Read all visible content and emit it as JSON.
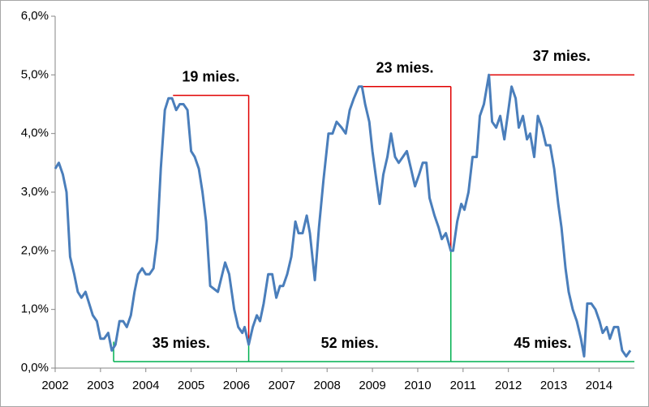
{
  "chart_data": {
    "type": "line",
    "x": [
      2002,
      2002.08,
      2002.17,
      2002.25,
      2002.33,
      2002.42,
      2002.5,
      2002.58,
      2002.67,
      2002.75,
      2002.83,
      2002.92,
      2003,
      2003.08,
      2003.17,
      2003.25,
      2003.33,
      2003.42,
      2003.5,
      2003.58,
      2003.67,
      2003.75,
      2003.83,
      2003.92,
      2004,
      2004.08,
      2004.17,
      2004.25,
      2004.33,
      2004.42,
      2004.5,
      2004.58,
      2004.67,
      2004.75,
      2004.83,
      2004.92,
      2005,
      2005.08,
      2005.17,
      2005.25,
      2005.33,
      2005.42,
      2005.59,
      2005.75,
      2005.84,
      2005.95,
      2006.04,
      2006.13,
      2006.18,
      2006.27,
      2006.36,
      2006.45,
      2006.52,
      2006.6,
      2006.7,
      2006.79,
      2006.88,
      2006.96,
      2007.03,
      2007.12,
      2007.21,
      2007.3,
      2007.37,
      2007.46,
      2007.55,
      2007.62,
      2007.73,
      2007.82,
      2007.92,
      2008.03,
      2008.12,
      2008.21,
      2008.32,
      2008.41,
      2008.5,
      2008.59,
      2008.7,
      2008.77,
      2008.84,
      2008.93,
      2009,
      2009.07,
      2009.16,
      2009.24,
      2009.33,
      2009.41,
      2009.5,
      2009.58,
      2009.67,
      2009.76,
      2009.85,
      2009.94,
      2010.03,
      2010.11,
      2010.19,
      2010.26,
      2010.37,
      2010.46,
      2010.53,
      2010.62,
      2010.73,
      2010.78,
      2010.87,
      2010.96,
      2011.03,
      2011.12,
      2011.21,
      2011.3,
      2011.37,
      2011.46,
      2011.57,
      2011.64,
      2011.73,
      2011.82,
      2011.91,
      2012,
      2012.07,
      2012.16,
      2012.23,
      2012.32,
      2012.41,
      2012.48,
      2012.57,
      2012.65,
      2012.74,
      2012.83,
      2012.92,
      2013.01,
      2013.1,
      2013.17,
      2013.26,
      2013.33,
      2013.42,
      2013.51,
      2013.6,
      2013.67,
      2013.74,
      2013.83,
      2013.92,
      2014.01,
      2014.08,
      2014.17,
      2014.24,
      2014.33,
      2014.42,
      2014.51,
      2014.6,
      2014.69
    ],
    "series": [
      {
        "color": "#4a7ebb",
        "values": [
          3.4,
          3.5,
          3.3,
          3.0,
          1.9,
          1.6,
          1.3,
          1.2,
          1.3,
          1.1,
          0.9,
          0.8,
          0.5,
          0.5,
          0.6,
          0.3,
          0.4,
          0.8,
          0.8,
          0.7,
          0.9,
          1.3,
          1.6,
          1.7,
          1.6,
          1.6,
          1.7,
          2.2,
          3.4,
          4.4,
          4.6,
          4.6,
          4.4,
          4.5,
          4.5,
          4.4,
          3.7,
          3.6,
          3.4,
          3.0,
          2.5,
          1.4,
          1.3,
          1.8,
          1.6,
          1.0,
          0.7,
          0.6,
          0.7,
          0.4,
          0.7,
          0.9,
          0.8,
          1.1,
          1.6,
          1.6,
          1.2,
          1.4,
          1.4,
          1.6,
          1.9,
          2.5,
          2.3,
          2.3,
          2.6,
          2.3,
          1.5,
          2.4,
          3.2,
          4.0,
          4.0,
          4.2,
          4.1,
          4.0,
          4.4,
          4.6,
          4.8,
          4.8,
          4.5,
          4.2,
          3.7,
          3.3,
          2.8,
          3.3,
          3.6,
          4.0,
          3.6,
          3.5,
          3.6,
          3.7,
          3.4,
          3.1,
          3.3,
          3.5,
          3.5,
          2.9,
          2.6,
          2.4,
          2.2,
          2.3,
          2.0,
          2.0,
          2.5,
          2.8,
          2.7,
          3.0,
          3.6,
          3.6,
          4.3,
          4.5,
          5.0,
          4.2,
          4.1,
          4.3,
          3.9,
          4.4,
          4.8,
          4.6,
          4.1,
          4.3,
          3.9,
          4.0,
          3.6,
          4.3,
          4.1,
          3.8,
          3.8,
          3.4,
          2.8,
          2.4,
          1.7,
          1.3,
          1.0,
          0.8,
          0.5,
          0.2,
          1.1,
          1.1,
          1.0,
          0.8,
          0.6,
          0.7,
          0.5,
          0.7,
          0.7,
          0.3,
          0.2,
          0.3
        ]
      }
    ],
    "xlim": [
      2002,
      2014.78
    ],
    "xticks": [
      2002,
      2003,
      2004,
      2005,
      2006,
      2007,
      2008,
      2009,
      2010,
      2011,
      2012,
      2013,
      2014
    ],
    "ylim": [
      0,
      6
    ],
    "yticks": [
      {
        "value": 0,
        "label": "0,0%"
      },
      {
        "value": 1,
        "label": "1,0%"
      },
      {
        "value": 2,
        "label": "2,0%"
      },
      {
        "value": 3,
        "label": "3,0%"
      },
      {
        "value": 4,
        "label": "4,0%"
      },
      {
        "value": 5,
        "label": "5,0%"
      },
      {
        "value": 6,
        "label": "6,0%"
      }
    ],
    "peaks": {
      "color": "#e00000",
      "items": [
        {
          "label": "19 mies.",
          "x": [
            2004.6,
            2006.27
          ],
          "y": 4.65,
          "drop": 0.4
        },
        {
          "label": "23 mies.",
          "x": [
            2008.7,
            2010.73
          ],
          "y": 4.8,
          "drop": 2.0
        },
        {
          "label": "37 mies.",
          "x": [
            2011.57,
            2014.78
          ],
          "y": 5.0
        }
      ]
    },
    "troughs": {
      "color": "#00b050",
      "y": 0.11,
      "items": [
        {
          "label": "35 mies.",
          "x": [
            2003.29,
            2006.27
          ],
          "top": 0.45
        },
        {
          "label": "52 mies.",
          "x": [
            2006.27,
            2010.73
          ],
          "top": 0.5
        },
        {
          "label": "45 mies.",
          "x": [
            2010.73,
            2014.78
          ],
          "top": 2.0
        }
      ]
    }
  }
}
